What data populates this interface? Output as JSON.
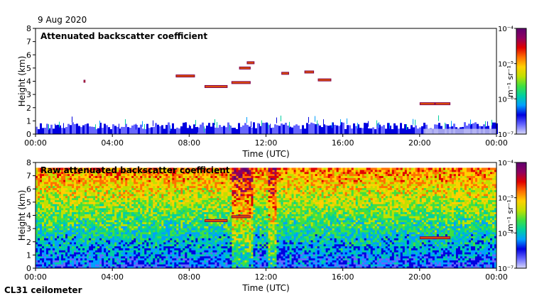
{
  "header": {
    "date": "9 Aug 2020"
  },
  "footer": {
    "instrument": "CL31 ceilometer"
  },
  "colors": {
    "colormap": [
      "#d8d8f8",
      "#6666ff",
      "#0000e0",
      "#00a0ff",
      "#00d0a0",
      "#40e040",
      "#c0e000",
      "#ffd000",
      "#ff7000",
      "#e00000",
      "#900060",
      "#600070"
    ]
  },
  "chart_data": [
    {
      "type": "heatmap",
      "title": "Attenuated backscatter coefficient",
      "xlabel": "Time (UTC)",
      "ylabel": "Height (km)",
      "x_ticks": [
        "00:00",
        "04:00",
        "08:00",
        "12:00",
        "16:00",
        "20:00",
        "00:00"
      ],
      "xlim_hours": [
        0,
        24
      ],
      "ylim": [
        0,
        8
      ],
      "y_ticks": [
        0,
        1,
        2,
        3,
        4,
        5,
        6,
        7,
        8
      ],
      "colorbar": {
        "label": "m⁻¹ sr⁻¹",
        "scale": "log",
        "range": [
          1e-07,
          0.0001
        ],
        "tick_labels": [
          "10⁻⁴",
          "10⁻⁵",
          "10⁻⁶",
          "10⁻⁷"
        ]
      },
      "features": [
        {
          "label": "boundary layer aerosol",
          "start_h": 0,
          "end_h": 24,
          "base_km": 0,
          "top_km": 0.8
        },
        {
          "label": "cloud",
          "start_h": 2.5,
          "end_h": 2.6,
          "height_km": 4.0
        },
        {
          "label": "cloud",
          "start_h": 7.3,
          "end_h": 8.3,
          "height_km": 4.4
        },
        {
          "label": "cloud",
          "start_h": 8.8,
          "end_h": 10.0,
          "height_km": 3.6
        },
        {
          "label": "cloud",
          "start_h": 10.2,
          "end_h": 11.2,
          "height_km": 3.9
        },
        {
          "label": "cloud",
          "start_h": 10.6,
          "end_h": 11.2,
          "height_km": 5.0
        },
        {
          "label": "cloud",
          "start_h": 11.0,
          "end_h": 11.4,
          "height_km": 5.4
        },
        {
          "label": "cloud",
          "start_h": 12.8,
          "end_h": 13.2,
          "height_km": 4.6
        },
        {
          "label": "cloud",
          "start_h": 14.0,
          "end_h": 14.5,
          "height_km": 4.7
        },
        {
          "label": "cloud",
          "start_h": 14.7,
          "end_h": 15.4,
          "height_km": 4.1
        },
        {
          "label": "cloud",
          "start_h": 20.0,
          "end_h": 20.8,
          "height_km": 2.3
        },
        {
          "label": "cloud",
          "start_h": 20.8,
          "end_h": 21.6,
          "height_km": 2.3
        }
      ]
    },
    {
      "type": "heatmap",
      "title": "Raw attenuated backscatter coefficient",
      "xlabel": "Time (UTC)",
      "ylabel": "Height (km)",
      "x_ticks": [
        "00:00",
        "04:00",
        "08:00",
        "12:00",
        "16:00",
        "20:00",
        "00:00"
      ],
      "xlim_hours": [
        0,
        24
      ],
      "ylim": [
        0,
        8
      ],
      "y_ticks": [
        0,
        1,
        2,
        3,
        4,
        5,
        6,
        7,
        8
      ],
      "colorbar": {
        "label": "m⁻¹ sr⁻¹",
        "scale": "log",
        "range": [
          1e-07,
          0.0001
        ],
        "tick_labels": [
          "10⁻⁴",
          "10⁻⁵",
          "10⁻⁶",
          "10⁻⁷"
        ]
      },
      "features": [
        {
          "label": "noise-dominated signal",
          "start_h": 0,
          "end_h": 24,
          "base_km": 0,
          "top_km": 7.6
        },
        {
          "label": "cloud",
          "start_h": 8.8,
          "end_h": 10.0,
          "height_km": 3.6
        },
        {
          "label": "cloud",
          "start_h": 10.2,
          "end_h": 11.2,
          "height_km": 3.9
        },
        {
          "label": "cloud",
          "start_h": 20.0,
          "end_h": 21.6,
          "height_km": 2.3
        }
      ]
    }
  ]
}
